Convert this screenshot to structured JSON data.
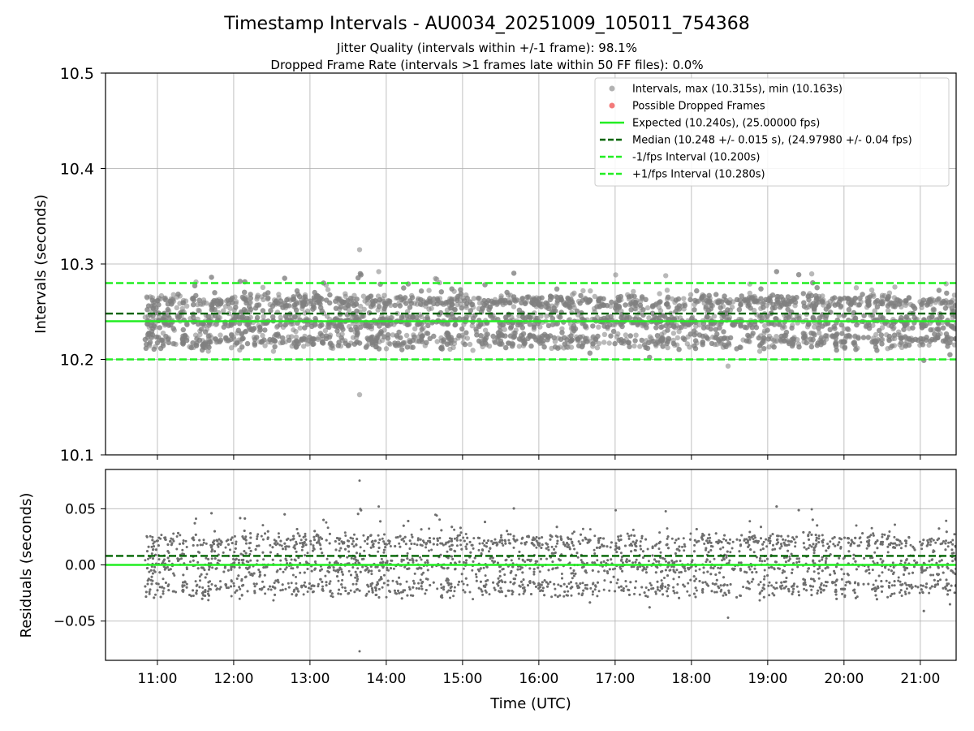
{
  "chart_data": {
    "type": "scatter",
    "title": "Timestamp Intervals - AU0034_20251009_105011_754368",
    "subtitle_lines": [
      "Jitter Quality (intervals within +/-1 frame): 98.1%",
      "Dropped Frame Rate (intervals >1 frames late within 50 FF files): 0.0%"
    ],
    "xlabel": "Time (UTC)",
    "x_ticks": [
      "11:00",
      "12:00",
      "13:00",
      "14:00",
      "15:00",
      "16:00",
      "17:00",
      "18:00",
      "19:00",
      "20:00",
      "21:00"
    ],
    "x_range_hours": [
      10.32,
      21.47
    ],
    "data_time_range_hours": [
      10.84,
      21.47
    ],
    "panels": [
      {
        "name": "intervals",
        "ylabel": "Intervals (seconds)",
        "ylim": [
          10.1,
          10.5
        ],
        "y_ticks": [
          "10.1",
          "10.2",
          "10.3",
          "10.4",
          "10.5"
        ],
        "y_tick_values": [
          10.1,
          10.2,
          10.3,
          10.4,
          10.5
        ],
        "lines": [
          {
            "name": "Expected",
            "y": 10.24,
            "style": "solid",
            "color": "#22ee22"
          },
          {
            "name": "Median",
            "y": 10.248,
            "style": "dashed",
            "color": "#006400"
          },
          {
            "name": "-1/fps Interval",
            "y": 10.2,
            "style": "dashed",
            "color": "#22ee22"
          },
          {
            "name": "+1/fps Interval",
            "y": 10.28,
            "style": "dashed",
            "color": "#22ee22"
          }
        ],
        "series": {
          "name": "Intervals",
          "color": "#808080",
          "count": 3900,
          "cluster_levels": [
            10.22,
            10.24,
            10.26
          ],
          "outliers": [
            {
              "t": 13.65,
              "y": 10.315
            },
            {
              "t": 13.65,
              "y": 10.163
            },
            {
              "t": 18.48,
              "y": 10.193
            }
          ]
        }
      },
      {
        "name": "residuals",
        "ylabel": "Residuals (seconds)",
        "ylim": [
          -0.085,
          0.085
        ],
        "y_ticks": [
          "−0.05",
          "0.00",
          "0.05"
        ],
        "y_tick_values": [
          -0.05,
          0.0,
          0.05
        ],
        "lines": [
          {
            "name": "Zero",
            "y": 0.0,
            "style": "solid",
            "color": "#22ee22"
          },
          {
            "name": "Median offset",
            "y": 0.008,
            "style": "dashed",
            "color": "#006400"
          }
        ]
      }
    ],
    "legend": {
      "placement": "top-right",
      "entries": [
        {
          "label": "Intervals, max (10.315s), min (10.163s)",
          "marker": "dot",
          "color": "#aaaaaa"
        },
        {
          "label": "Possible Dropped Frames",
          "marker": "dot",
          "color": "#f26b6b"
        },
        {
          "label": "Expected (10.240s), (25.00000 fps)",
          "marker": "solid",
          "color": "#22ee22"
        },
        {
          "label": "Median (10.248 +/- 0.015 s), (24.97980 +/- 0.04 fps)",
          "marker": "dashed",
          "color": "#006400"
        },
        {
          "label": "-1/fps Interval (10.200s)",
          "marker": "dashed",
          "color": "#22ee22"
        },
        {
          "label": "+1/fps Interval (10.280s)",
          "marker": "dashed",
          "color": "#22ee22"
        }
      ]
    },
    "grid": true
  }
}
